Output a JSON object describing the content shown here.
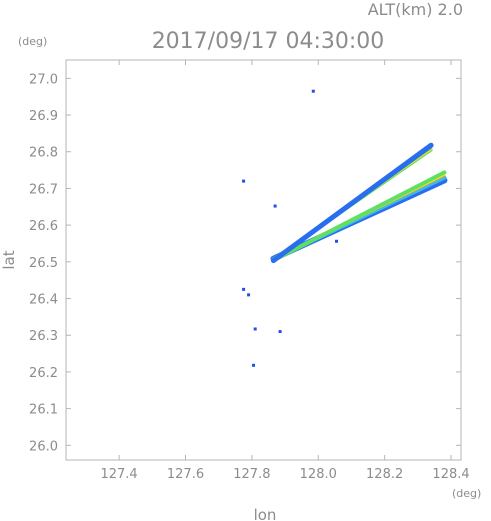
{
  "chart_data": {
    "type": "scatter",
    "title": "2017/09/17 04:30:00",
    "subtitle": "ALT(km) 2.0",
    "xlabel": "lon",
    "ylabel": "lat",
    "x_unit": "(deg)",
    "y_unit": "(deg)",
    "xlim": [
      127.24,
      128.43
    ],
    "ylim": [
      25.96,
      27.05
    ],
    "x_ticks": [
      127.4,
      127.6,
      127.8,
      128.0,
      128.2,
      128.4
    ],
    "x_tick_labels": [
      "127.4",
      "127.6",
      "127.8",
      "128.0",
      "128.2",
      "128.4"
    ],
    "y_ticks": [
      26.0,
      26.1,
      26.2,
      26.3,
      26.4,
      26.5,
      26.6,
      26.7,
      26.8,
      26.9,
      27.0
    ],
    "y_tick_labels": [
      "26.0",
      "26.1",
      "26.2",
      "26.3",
      "26.4",
      "26.5",
      "26.6",
      "26.7",
      "26.8",
      "26.9",
      "27.0"
    ],
    "grid": false,
    "series": [
      {
        "color": "#2050e8",
        "points": [
          [
            127.985,
            26.965
          ],
          [
            127.87,
            26.652
          ],
          [
            127.775,
            26.72
          ],
          [
            127.775,
            26.425
          ],
          [
            127.79,
            26.41
          ],
          [
            127.81,
            26.317
          ],
          [
            127.885,
            26.31
          ],
          [
            127.805,
            26.218
          ],
          [
            128.055,
            26.556
          ]
        ]
      }
    ],
    "wedges": [
      {
        "apex": [
          127.865,
          26.506
        ],
        "upper_edge": [
          128.34,
          26.81
        ],
        "lower_edge": [
          128.38,
          26.735
        ],
        "bands": [
          {
            "color": "#2a6ef0",
            "offset": -0.012,
            "width": 6
          },
          {
            "color": "#3cb8f0",
            "offset": -0.005,
            "width": 4
          },
          {
            "color": "#f0a020",
            "offset": 0.0,
            "width": 2
          },
          {
            "color": "#f0f020",
            "offset": 0.004,
            "width": 3
          },
          {
            "color": "#60e060",
            "offset": 0.008,
            "width": 4
          }
        ]
      }
    ]
  }
}
